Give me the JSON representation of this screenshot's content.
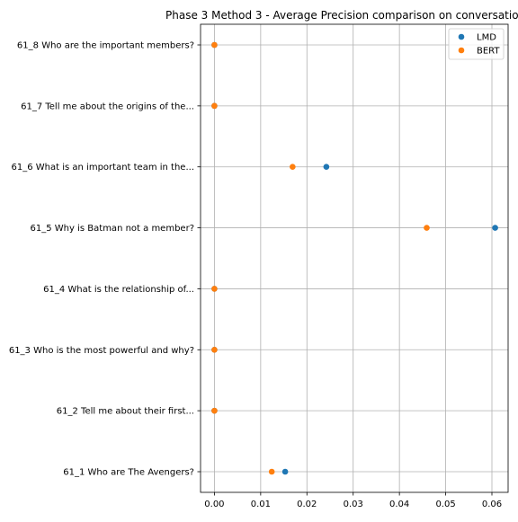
{
  "chart_data": {
    "type": "scatter",
    "title": "Phase 3 Method 3 - Average Precision comparison on conversatio",
    "xlabel": "",
    "ylabel": "",
    "xlim": [
      -0.003,
      0.0635
    ],
    "x_ticks": [
      0.0,
      0.01,
      0.02,
      0.03,
      0.04,
      0.05,
      0.06
    ],
    "x_tick_labels": [
      "0.00",
      "0.01",
      "0.02",
      "0.03",
      "0.04",
      "0.05",
      "0.06"
    ],
    "grid": true,
    "legend_position": "top-right",
    "categories": [
      "61_1 Who are The Avengers?",
      "61_2 Tell me about their first...",
      "61_3 Who is the most powerful and why?",
      "61_4 What is the relationship of...",
      "61_5 Why is Batman not a member?",
      "61_6 What is an important team in the...",
      "61_7 Tell me about the origins of the...",
      "61_8 Who are the important members?"
    ],
    "series": [
      {
        "name": "LMD",
        "color": "#1f77b4",
        "values": [
          0.0153,
          0.0,
          0.0,
          0.0,
          0.0607,
          0.0242,
          0.0,
          0.0
        ]
      },
      {
        "name": "BERT",
        "color": "#ff7f0e",
        "values": [
          0.0124,
          0.0,
          0.0,
          0.0,
          0.0459,
          0.0169,
          0.0,
          0.0
        ]
      }
    ]
  }
}
